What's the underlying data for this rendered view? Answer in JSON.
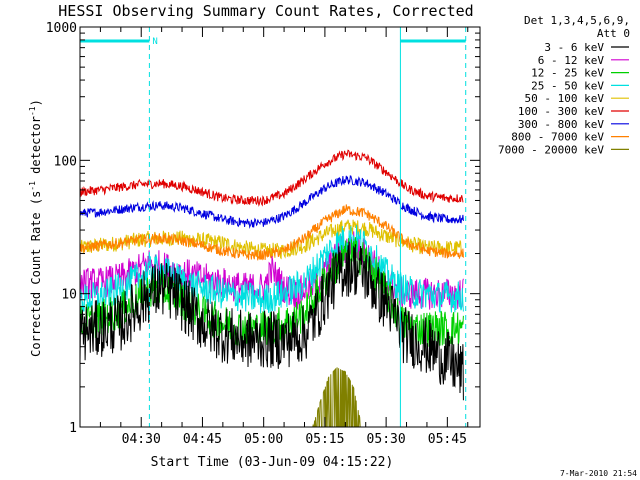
{
  "chart_data": {
    "type": "line",
    "title": "HESSI Observing Summary Count Rates, Corrected",
    "xlabel": "Start Time (03-Jun-09 04:15:22)",
    "ylabel_main": "Corrected Count Rate (s",
    "ylabel_sup1": "-1",
    "ylabel_mid": " detector",
    "ylabel_sup2": "-1",
    "ylabel_end": ")",
    "yscale": "log",
    "ylim": [
      1,
      1000
    ],
    "xlim_minutes": [
      0,
      98
    ],
    "yticks": [
      {
        "label": "1000",
        "value": 1000
      },
      {
        "label": "100",
        "value": 100
      },
      {
        "label": "10",
        "value": 10
      },
      {
        "label": "1",
        "value": 1
      }
    ],
    "xticks": [
      {
        "label": "04:30",
        "minute": 15
      },
      {
        "label": "04:45",
        "minute": 30
      },
      {
        "label": "05:00",
        "minute": 45
      },
      {
        "label": "05:15",
        "minute": 60
      },
      {
        "label": "05:30",
        "minute": 75
      },
      {
        "label": "05:45",
        "minute": 90
      }
    ],
    "legend": {
      "header1": "Det 1,3,4,5,6,9,",
      "header2": "Att 0",
      "placement": "right"
    },
    "night_marker": "N",
    "cyan_bars": [
      [
        0,
        17
      ],
      [
        78.5,
        94.5
      ]
    ],
    "vlines_solid": [
      0,
      78.5
    ],
    "vlines_dashed": [
      17,
      94.5
    ],
    "series": [
      {
        "name": "3 - 6 keV",
        "color": "#000000",
        "x": [
          0,
          5,
          10,
          14,
          17,
          20,
          23,
          26,
          30,
          35,
          40,
          45,
          50,
          55,
          58,
          61,
          64,
          67,
          70,
          73,
          76,
          79,
          82,
          85,
          88,
          91,
          94
        ],
        "y": [
          5,
          5.5,
          6,
          8,
          10,
          11,
          10,
          8,
          6,
          5,
          4.5,
          4.5,
          4.5,
          5,
          7,
          11,
          15,
          16,
          14,
          10,
          8,
          5,
          4.5,
          4,
          3.5,
          3,
          2.5
        ]
      },
      {
        "name": "6 - 12 keV",
        "color": "#d000d0",
        "x": [
          0,
          5,
          10,
          14,
          17,
          20,
          23,
          26,
          30,
          35,
          40,
          45,
          47,
          50,
          53,
          58,
          61,
          64,
          67,
          70,
          73,
          76,
          79,
          82,
          85,
          88,
          91,
          94
        ],
        "y": [
          12,
          12,
          13,
          15,
          17,
          16,
          15,
          14,
          13,
          12,
          11,
          11,
          15,
          11,
          10,
          12,
          16,
          21,
          23,
          20,
          15,
          12,
          10,
          10,
          10,
          10,
          10,
          10
        ]
      },
      {
        "name": "12 - 25 keV",
        "color": "#00d000",
        "x": [
          0,
          5,
          10,
          14,
          17,
          20,
          23,
          26,
          30,
          35,
          40,
          45,
          50,
          55,
          58,
          61,
          64,
          67,
          70,
          73,
          76,
          79,
          82,
          85,
          88,
          91,
          94
        ],
        "y": [
          6,
          6.5,
          7.5,
          9,
          10.5,
          11,
          10,
          8.5,
          7,
          6,
          5.5,
          5.5,
          6,
          7,
          10,
          14,
          18,
          20,
          18,
          13,
          9,
          6,
          5.5,
          5.5,
          5.5,
          5.5,
          5.5
        ]
      },
      {
        "name": "25 - 50 keV",
        "color": "#00e0e0",
        "x": [
          0,
          5,
          10,
          14,
          17,
          20,
          23,
          26,
          30,
          35,
          40,
          45,
          50,
          55,
          58,
          61,
          64,
          67,
          70,
          73,
          76,
          79,
          82,
          85,
          88,
          91,
          94
        ],
        "y": [
          9,
          9.5,
          11,
          13,
          15,
          15,
          13.5,
          12,
          11,
          10,
          9.5,
          9,
          10,
          12,
          16,
          21,
          25,
          26,
          23,
          17,
          13,
          11,
          10,
          10,
          9.5,
          9.5,
          9.5
        ]
      },
      {
        "name": "50 - 100 keV",
        "color": "#e0c000",
        "x": [
          0,
          5,
          10,
          15,
          20,
          25,
          30,
          35,
          40,
          45,
          50,
          55,
          60,
          65,
          70,
          75,
          80,
          85,
          90,
          94
        ],
        "y": [
          22,
          23,
          24,
          25.5,
          26,
          26,
          25,
          24,
          22,
          21,
          21,
          23,
          28,
          32,
          31,
          27,
          24,
          22,
          22,
          22
        ]
      },
      {
        "name": "100 - 300 keV",
        "color": "#e00000",
        "x": [
          0,
          5,
          10,
          15,
          20,
          25,
          30,
          35,
          40,
          45,
          50,
          55,
          60,
          65,
          70,
          75,
          80,
          85,
          90,
          94
        ],
        "y": [
          58,
          60,
          63,
          66,
          67,
          64,
          58,
          52,
          50,
          50,
          56,
          72,
          95,
          112,
          105,
          82,
          62,
          54,
          52,
          52
        ]
      },
      {
        "name": "300 - 800 keV",
        "color": "#0000e0",
        "x": [
          0,
          5,
          10,
          15,
          20,
          25,
          30,
          35,
          40,
          45,
          50,
          55,
          60,
          65,
          70,
          75,
          80,
          85,
          90,
          94
        ],
        "y": [
          40,
          41,
          43,
          45,
          46,
          44,
          40,
          36,
          34,
          34,
          38,
          48,
          62,
          72,
          68,
          56,
          44,
          38,
          36,
          36
        ]
      },
      {
        "name": "800 - 7000 keV",
        "color": "#ff8000",
        "x": [
          0,
          5,
          10,
          15,
          20,
          25,
          30,
          35,
          40,
          45,
          50,
          55,
          60,
          65,
          70,
          75,
          80,
          85,
          90,
          94
        ],
        "y": [
          22,
          23,
          24,
          25.5,
          26,
          25,
          23,
          21,
          19.5,
          19.5,
          21,
          26,
          35,
          43,
          40,
          32,
          24,
          21,
          20,
          20
        ]
      },
      {
        "name": "7000 - 20000 keV",
        "color": "#808000",
        "x": [
          57,
          59,
          61,
          63,
          65,
          67,
          69
        ],
        "y": [
          1,
          1.6,
          2.4,
          2.8,
          2.6,
          2,
          1
        ]
      }
    ],
    "footer": "7-Mar-2010 21:54"
  }
}
